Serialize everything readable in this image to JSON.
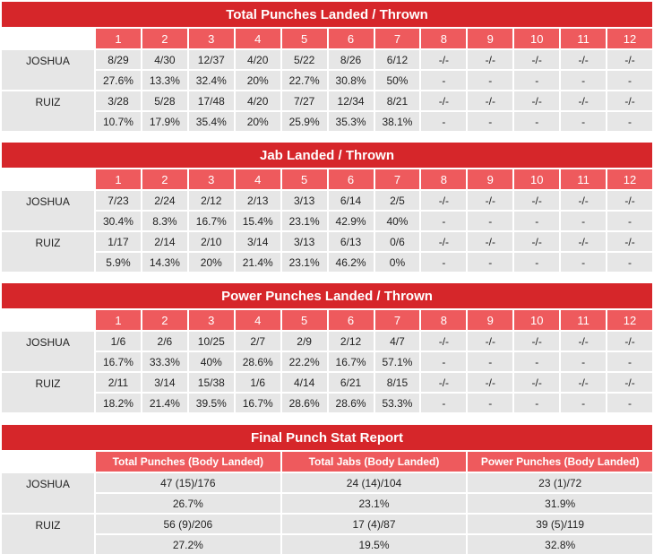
{
  "rounds": [
    "1",
    "2",
    "3",
    "4",
    "5",
    "6",
    "7",
    "8",
    "9",
    "10",
    "11",
    "12"
  ],
  "tables": [
    {
      "title": "Total Punches Landed / Thrown",
      "fighters": [
        {
          "name": "JOSHUA",
          "landed": [
            "8/29",
            "4/30",
            "12/37",
            "4/20",
            "5/22",
            "8/26",
            "6/12",
            "-/-",
            "-/-",
            "-/-",
            "-/-",
            "-/-"
          ],
          "pct": [
            "27.6%",
            "13.3%",
            "32.4%",
            "20%",
            "22.7%",
            "30.8%",
            "50%",
            "-",
            "-",
            "-",
            "-",
            "-"
          ]
        },
        {
          "name": "RUIZ",
          "landed": [
            "3/28",
            "5/28",
            "17/48",
            "4/20",
            "7/27",
            "12/34",
            "8/21",
            "-/-",
            "-/-",
            "-/-",
            "-/-",
            "-/-"
          ],
          "pct": [
            "10.7%",
            "17.9%",
            "35.4%",
            "20%",
            "25.9%",
            "35.3%",
            "38.1%",
            "-",
            "-",
            "-",
            "-",
            "-"
          ]
        }
      ]
    },
    {
      "title": "Jab Landed / Thrown",
      "fighters": [
        {
          "name": "JOSHUA",
          "landed": [
            "7/23",
            "2/24",
            "2/12",
            "2/13",
            "3/13",
            "6/14",
            "2/5",
            "-/-",
            "-/-",
            "-/-",
            "-/-",
            "-/-"
          ],
          "pct": [
            "30.4%",
            "8.3%",
            "16.7%",
            "15.4%",
            "23.1%",
            "42.9%",
            "40%",
            "-",
            "-",
            "-",
            "-",
            "-"
          ]
        },
        {
          "name": "RUIZ",
          "landed": [
            "1/17",
            "2/14",
            "2/10",
            "3/14",
            "3/13",
            "6/13",
            "0/6",
            "-/-",
            "-/-",
            "-/-",
            "-/-",
            "-/-"
          ],
          "pct": [
            "5.9%",
            "14.3%",
            "20%",
            "21.4%",
            "23.1%",
            "46.2%",
            "0%",
            "-",
            "-",
            "-",
            "-",
            "-"
          ]
        }
      ]
    },
    {
      "title": "Power Punches Landed / Thrown",
      "fighters": [
        {
          "name": "JOSHUA",
          "landed": [
            "1/6",
            "2/6",
            "10/25",
            "2/7",
            "2/9",
            "2/12",
            "4/7",
            "-/-",
            "-/-",
            "-/-",
            "-/-",
            "-/-"
          ],
          "pct": [
            "16.7%",
            "33.3%",
            "40%",
            "28.6%",
            "22.2%",
            "16.7%",
            "57.1%",
            "-",
            "-",
            "-",
            "-",
            "-"
          ]
        },
        {
          "name": "RUIZ",
          "landed": [
            "2/11",
            "3/14",
            "15/38",
            "1/6",
            "4/14",
            "6/21",
            "8/15",
            "-/-",
            "-/-",
            "-/-",
            "-/-",
            "-/-"
          ],
          "pct": [
            "18.2%",
            "21.4%",
            "39.5%",
            "16.7%",
            "28.6%",
            "28.6%",
            "53.3%",
            "-",
            "-",
            "-",
            "-",
            "-"
          ]
        }
      ]
    }
  ],
  "final": {
    "title": "Final Punch Stat Report",
    "headers": [
      "Total Punches (Body Landed)",
      "Total Jabs (Body Landed)",
      "Power Punches (Body Landed)"
    ],
    "fighters": [
      {
        "name": "JOSHUA",
        "values": [
          "47 (15)/176",
          "24 (14)/104",
          "23 (1)/72"
        ],
        "pct": [
          "26.7%",
          "23.1%",
          "31.9%"
        ]
      },
      {
        "name": "RUIZ",
        "values": [
          "56 (9)/206",
          "17 (4)/87",
          "39 (5)/119"
        ],
        "pct": [
          "27.2%",
          "19.5%",
          "32.8%"
        ]
      }
    ]
  },
  "colors": {
    "title_bg": "#d6262a",
    "header_bg": "#ee5a5d",
    "cell_bg": "#e6e6e6"
  }
}
